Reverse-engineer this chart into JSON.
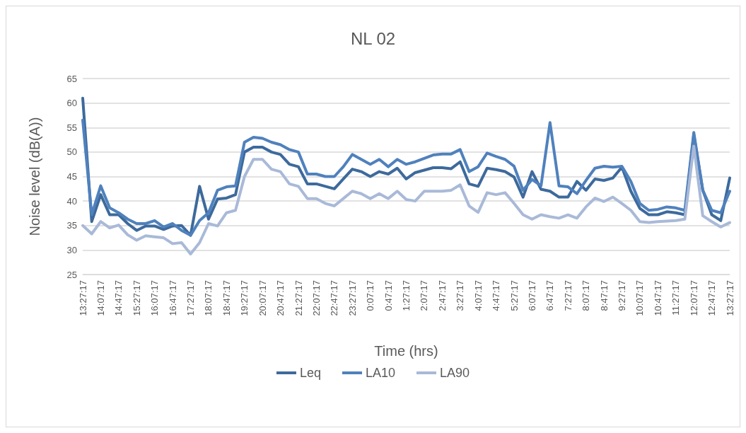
{
  "chart_data": {
    "type": "line",
    "title": "NL 02",
    "xlabel": "Time (hrs)",
    "ylabel": "Noise level (dB(A))",
    "categories": [
      "13:27:17",
      null,
      "14:07:17",
      null,
      "14:47:17",
      null,
      "15:27:17",
      null,
      "16:07:17",
      null,
      "16:47:17",
      null,
      "17:27:17",
      null,
      "18:07:17",
      null,
      "18:47:17",
      null,
      "19:27:17",
      null,
      "20:07:17",
      null,
      "20:47:17",
      null,
      "21:27:17",
      null,
      "22:07:17",
      null,
      "22:47:17",
      null,
      "23:27:17",
      null,
      "0:07:17",
      null,
      "0:47:17",
      null,
      "1:27:17",
      null,
      "2:07:17",
      null,
      "2:47:17",
      null,
      "3:27:17",
      null,
      "4:07:17",
      null,
      "4:47:17",
      null,
      "5:27:17",
      null,
      "6:07:17",
      null,
      "6:47:17",
      null,
      "7:27:17",
      null,
      "8:07:17",
      null,
      "8:47:17",
      null,
      "9:27:17",
      null,
      "10:07:17",
      null,
      "10:47:17",
      null,
      "11:27:17",
      null,
      "12:07:17",
      null,
      "12:47:17",
      null,
      "13:27:17"
    ],
    "series": [
      {
        "name": "Leq",
        "color": "#3d6a9c",
        "values": [
          61,
          35.8,
          41.3,
          37.2,
          37.2,
          35.4,
          34,
          34.9,
          34.9,
          34.2,
          34.9,
          35,
          33,
          43,
          36.3,
          40.4,
          40.6,
          41.3,
          50,
          51,
          51,
          50,
          49.5,
          47.5,
          47,
          43.5,
          43.5,
          43,
          42.5,
          44.5,
          46.5,
          46,
          45,
          46,
          45.5,
          46.7,
          44.5,
          45.8,
          46.3,
          46.8,
          46.8,
          46.6,
          48,
          43.5,
          43,
          46.7,
          46.4,
          46,
          44.9,
          40.8,
          46,
          42.4,
          42,
          40.8,
          40.8,
          44,
          42.2,
          44.5,
          44.2,
          44.7,
          46.9,
          42,
          38.5,
          37.2,
          37.2,
          37.8,
          37.6,
          37.2,
          53.5,
          42.2,
          37.2,
          36,
          44.7
        ]
      },
      {
        "name": "LA10",
        "color": "#4f81bd",
        "values": [
          56.5,
          37.2,
          43.1,
          38.6,
          37.6,
          36.3,
          35.4,
          35.4,
          36,
          34.7,
          35.4,
          34,
          33,
          36,
          37.6,
          42.2,
          42.9,
          43.1,
          52,
          53,
          52.8,
          52,
          51.5,
          50.5,
          50,
          45.5,
          45.5,
          45,
          45,
          47,
          49.5,
          48.5,
          47.5,
          48.5,
          47,
          48.5,
          47.5,
          48,
          48.7,
          49.4,
          49.6,
          49.6,
          50.5,
          46,
          47,
          49.8,
          49.1,
          48.5,
          47.1,
          42.2,
          44.4,
          43.1,
          56,
          43.1,
          42.9,
          41.5,
          44.2,
          46.7,
          47.1,
          46.9,
          47.1,
          44,
          39.5,
          38.1,
          38.3,
          38.8,
          38.6,
          38.1,
          54,
          42.2,
          38.1,
          37.6,
          42
        ]
      },
      {
        "name": "LA90",
        "color": "#a9b9d8",
        "values": [
          35,
          33.3,
          35.8,
          34.5,
          35.1,
          33.1,
          32,
          32.9,
          32.7,
          32.5,
          31.3,
          31.5,
          29.2,
          31.5,
          35.4,
          34.9,
          37.6,
          38.1,
          45,
          48.5,
          48.5,
          46.5,
          46,
          43.5,
          43,
          40.5,
          40.5,
          39.5,
          39,
          40.5,
          42,
          41.5,
          40.5,
          41.5,
          40.5,
          42,
          40.3,
          40,
          42,
          42,
          42,
          42.2,
          43.3,
          39,
          37.7,
          41.7,
          41.3,
          41.7,
          39.5,
          37.2,
          36.3,
          37.2,
          36.8,
          36.5,
          37.2,
          36.5,
          38.8,
          40.6,
          39.9,
          40.8,
          39.5,
          38.1,
          35.8,
          35.6,
          35.8,
          35.9,
          36,
          36.3,
          51.2,
          37,
          35.8,
          34.7,
          35.6
        ]
      }
    ],
    "ylim": [
      25,
      65
    ],
    "yticks": [
      25,
      30,
      35,
      40,
      45,
      50,
      55,
      60,
      65
    ],
    "grid": "y",
    "legend": "bottom",
    "marker": "none",
    "line_style": "solid"
  }
}
